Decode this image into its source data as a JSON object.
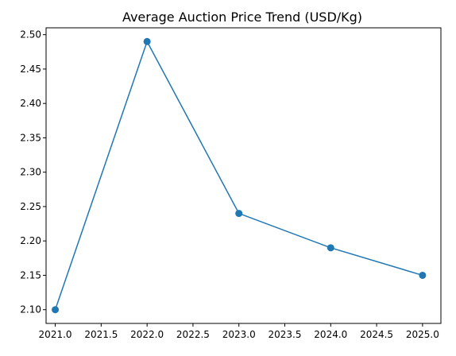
{
  "chart_data": {
    "type": "line",
    "title": "Average Auction Price Trend (USD/Kg)",
    "xlabel": "",
    "ylabel": "",
    "x": [
      2021,
      2022,
      2023,
      2024,
      2025
    ],
    "series": [
      {
        "values": [
          2.1,
          2.49,
          2.24,
          2.19,
          2.15
        ],
        "color": "#1f77b4",
        "marker": "circle"
      }
    ],
    "xlim": [
      2020.9,
      2025.2
    ],
    "ylim": [
      2.08,
      2.51
    ],
    "x_ticks": [
      "2021.0",
      "2021.5",
      "2022.0",
      "2022.5",
      "2023.0",
      "2023.5",
      "2024.0",
      "2024.5",
      "2025.0"
    ],
    "y_ticks": [
      "2.10",
      "2.15",
      "2.20",
      "2.25",
      "2.30",
      "2.35",
      "2.40",
      "2.45",
      "2.50"
    ],
    "grid": false,
    "legend": "none"
  }
}
